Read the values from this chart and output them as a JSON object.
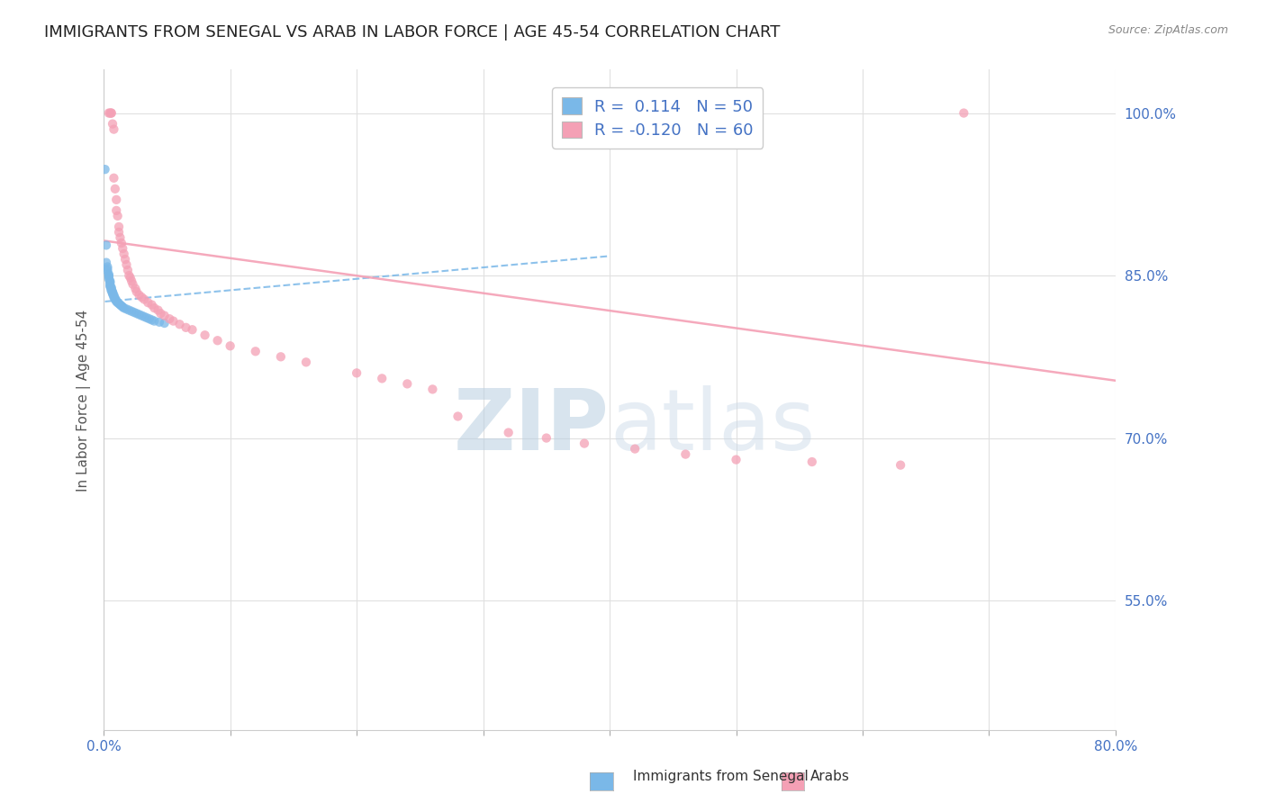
{
  "title": "IMMIGRANTS FROM SENEGAL VS ARAB IN LABOR FORCE | AGE 45-54 CORRELATION CHART",
  "source": "Source: ZipAtlas.com",
  "ylabel": "In Labor Force | Age 45-54",
  "xlim": [
    0.0,
    0.8
  ],
  "ylim": [
    0.43,
    1.04
  ],
  "xticks": [
    0.0,
    0.1,
    0.2,
    0.3,
    0.4,
    0.5,
    0.6,
    0.7,
    0.8
  ],
  "xticklabels": [
    "0.0%",
    "",
    "",
    "",
    "",
    "",
    "",
    "",
    "80.0%"
  ],
  "yticks_right": [
    0.55,
    0.7,
    0.85,
    1.0
  ],
  "ytick_labels_right": [
    "55.0%",
    "70.0%",
    "85.0%",
    "100.0%"
  ],
  "senegal_R": 0.114,
  "senegal_N": 50,
  "arab_R": -0.12,
  "arab_N": 60,
  "senegal_color": "#7ab8e8",
  "arab_color": "#f4a0b5",
  "watermark": "ZIPatlas",
  "watermark_color": "#d0e4f0",
  "background_color": "#ffffff",
  "grid_color": "#e0e0e0",
  "right_axis_color": "#4472c4",
  "title_fontsize": 13,
  "axis_label_fontsize": 11,
  "tick_fontsize": 11,
  "legend_fontsize": 13,
  "senegal_x": [
    0.001,
    0.002,
    0.002,
    0.003,
    0.003,
    0.003,
    0.004,
    0.004,
    0.004,
    0.004,
    0.005,
    0.005,
    0.005,
    0.005,
    0.005,
    0.006,
    0.006,
    0.006,
    0.006,
    0.007,
    0.007,
    0.007,
    0.007,
    0.008,
    0.008,
    0.008,
    0.009,
    0.009,
    0.01,
    0.01,
    0.011,
    0.012,
    0.013,
    0.014,
    0.015,
    0.016,
    0.018,
    0.02,
    0.022,
    0.024,
    0.026,
    0.028,
    0.03,
    0.032,
    0.034,
    0.036,
    0.038,
    0.04,
    0.044,
    0.048
  ],
  "senegal_y": [
    0.948,
    0.878,
    0.862,
    0.858,
    0.856,
    0.854,
    0.851,
    0.85,
    0.849,
    0.847,
    0.845,
    0.844,
    0.843,
    0.841,
    0.84,
    0.839,
    0.838,
    0.837,
    0.836,
    0.835,
    0.834,
    0.834,
    0.833,
    0.832,
    0.831,
    0.83,
    0.829,
    0.828,
    0.827,
    0.826,
    0.825,
    0.824,
    0.823,
    0.822,
    0.821,
    0.82,
    0.819,
    0.818,
    0.817,
    0.816,
    0.815,
    0.814,
    0.813,
    0.812,
    0.811,
    0.81,
    0.809,
    0.808,
    0.807,
    0.806
  ],
  "arab_x": [
    0.004,
    0.005,
    0.006,
    0.006,
    0.007,
    0.008,
    0.008,
    0.009,
    0.01,
    0.01,
    0.011,
    0.012,
    0.012,
    0.013,
    0.014,
    0.015,
    0.016,
    0.017,
    0.018,
    0.019,
    0.02,
    0.021,
    0.022,
    0.023,
    0.025,
    0.026,
    0.028,
    0.03,
    0.032,
    0.035,
    0.038,
    0.04,
    0.043,
    0.045,
    0.048,
    0.052,
    0.055,
    0.06,
    0.065,
    0.07,
    0.08,
    0.09,
    0.1,
    0.12,
    0.14,
    0.16,
    0.2,
    0.22,
    0.24,
    0.26,
    0.28,
    0.32,
    0.35,
    0.38,
    0.42,
    0.46,
    0.5,
    0.56,
    0.63,
    0.68
  ],
  "arab_y": [
    1.0,
    1.0,
    1.0,
    1.0,
    0.99,
    0.985,
    0.94,
    0.93,
    0.92,
    0.91,
    0.905,
    0.895,
    0.89,
    0.885,
    0.88,
    0.875,
    0.87,
    0.865,
    0.86,
    0.855,
    0.85,
    0.848,
    0.845,
    0.842,
    0.838,
    0.835,
    0.832,
    0.83,
    0.828,
    0.825,
    0.823,
    0.82,
    0.818,
    0.815,
    0.813,
    0.81,
    0.808,
    0.805,
    0.802,
    0.8,
    0.795,
    0.79,
    0.785,
    0.78,
    0.775,
    0.77,
    0.76,
    0.755,
    0.75,
    0.745,
    0.72,
    0.705,
    0.7,
    0.695,
    0.69,
    0.685,
    0.68,
    0.678,
    0.675,
    1.0
  ],
  "senegal_trend_x": [
    0.001,
    0.4
  ],
  "senegal_trend_y": [
    0.826,
    0.868
  ],
  "arab_trend_x": [
    0.001,
    0.8
  ],
  "arab_trend_y": [
    0.882,
    0.753
  ]
}
